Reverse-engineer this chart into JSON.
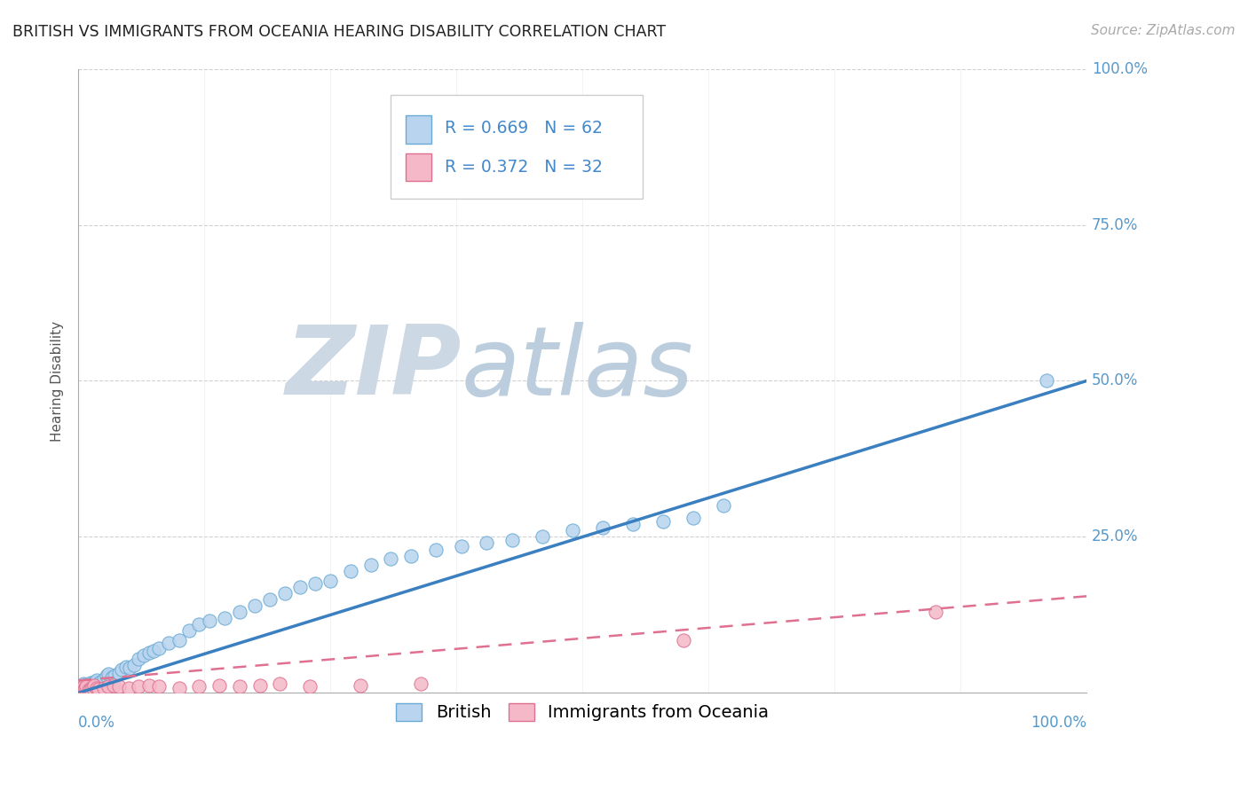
{
  "title": "BRITISH VS IMMIGRANTS FROM OCEANIA HEARING DISABILITY CORRELATION CHART",
  "source_text": "Source: ZipAtlas.com",
  "ylabel": "Hearing Disability",
  "watermark_zip": "ZIP",
  "watermark_atlas": "atlas",
  "xlim": [
    0,
    1
  ],
  "ylim": [
    0,
    1
  ],
  "british_line_color": "#3a7fc0",
  "oceania_line_color": "#e07090",
  "british_scatter_face": "#b8d4ee",
  "british_scatter_edge": "#6aaad4",
  "oceania_scatter_face": "#f4b8c8",
  "oceania_scatter_edge": "#e07090",
  "title_fontsize": 12.5,
  "source_fontsize": 11,
  "axis_label_fontsize": 11,
  "tick_fontsize": 12,
  "legend_fontsize": 14,
  "watermark_color_zip": "#c8d8e8",
  "watermark_color_atlas": "#c0cfe0",
  "background_color": "#ffffff",
  "grid_color": "#cccccc",
  "tick_color": "#5599cc",
  "british_x": [
    0.002,
    0.003,
    0.004,
    0.005,
    0.006,
    0.007,
    0.008,
    0.009,
    0.01,
    0.011,
    0.012,
    0.013,
    0.014,
    0.015,
    0.016,
    0.018,
    0.02,
    0.022,
    0.025,
    0.028,
    0.03,
    0.033,
    0.036,
    0.04,
    0.043,
    0.047,
    0.051,
    0.055,
    0.06,
    0.065,
    0.07,
    0.075,
    0.08,
    0.09,
    0.1,
    0.11,
    0.12,
    0.13,
    0.145,
    0.16,
    0.175,
    0.19,
    0.205,
    0.22,
    0.235,
    0.25,
    0.27,
    0.29,
    0.31,
    0.33,
    0.355,
    0.38,
    0.405,
    0.43,
    0.46,
    0.49,
    0.52,
    0.55,
    0.58,
    0.61,
    0.64,
    0.96
  ],
  "british_y": [
    0.008,
    0.01,
    0.012,
    0.015,
    0.01,
    0.012,
    0.014,
    0.009,
    0.011,
    0.013,
    0.016,
    0.012,
    0.01,
    0.014,
    0.018,
    0.02,
    0.015,
    0.018,
    0.022,
    0.028,
    0.03,
    0.025,
    0.028,
    0.032,
    0.038,
    0.042,
    0.04,
    0.045,
    0.055,
    0.06,
    0.065,
    0.068,
    0.072,
    0.08,
    0.085,
    0.1,
    0.11,
    0.115,
    0.12,
    0.13,
    0.14,
    0.15,
    0.16,
    0.17,
    0.175,
    0.18,
    0.195,
    0.205,
    0.215,
    0.22,
    0.23,
    0.235,
    0.24,
    0.245,
    0.25,
    0.26,
    0.265,
    0.27,
    0.275,
    0.28,
    0.3,
    0.5
  ],
  "oceania_x": [
    0.002,
    0.003,
    0.004,
    0.005,
    0.006,
    0.007,
    0.008,
    0.01,
    0.012,
    0.014,
    0.016,
    0.018,
    0.02,
    0.025,
    0.03,
    0.035,
    0.04,
    0.05,
    0.06,
    0.07,
    0.08,
    0.1,
    0.12,
    0.14,
    0.16,
    0.18,
    0.2,
    0.23,
    0.28,
    0.34,
    0.6,
    0.85
  ],
  "oceania_y": [
    0.004,
    0.006,
    0.008,
    0.01,
    0.006,
    0.008,
    0.01,
    0.005,
    0.007,
    0.009,
    0.012,
    0.008,
    0.006,
    0.008,
    0.01,
    0.012,
    0.01,
    0.008,
    0.01,
    0.012,
    0.01,
    0.008,
    0.01,
    0.012,
    0.01,
    0.012,
    0.015,
    0.01,
    0.012,
    0.015,
    0.085,
    0.13
  ],
  "british_line_x": [
    0.0,
    1.0
  ],
  "british_line_y": [
    0.0,
    0.5
  ],
  "oceania_line_x": [
    0.0,
    1.0
  ],
  "oceania_line_y": [
    0.02,
    0.155
  ]
}
